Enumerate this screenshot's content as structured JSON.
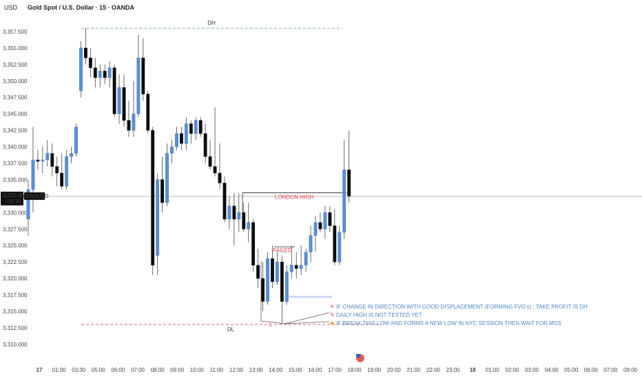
{
  "header": {
    "currency": "USD",
    "title": "Gold Spot / U.S. Dollar · 15 · OANDA"
  },
  "price_tag": {
    "price": "3,332.450",
    "countdown": "09:39",
    "symbol": "XAUUSD"
  },
  "labels": {
    "dh": "DH",
    "dl": "DL",
    "london_high": "LONDON HIGH",
    "failed": "FAILED",
    "l_marker": "L"
  },
  "notes": [
    {
      "icon": "pencil-icon",
      "text": "IF CHANGE IN DIRECTION WITH GOOD DISPLACEMENT (FORMING FVG's) ; TAKE PROFIT IS DH"
    },
    {
      "icon": "pencil-icon",
      "text": "DAILY HIGH IS NOT TESTED YET"
    },
    {
      "icon": "hand-pointing-icon",
      "text": "IF BREAK THIS LOW AND FORMS A NEW LOW IN NYC SESSION THEN WAIT FOR MSS"
    }
  ],
  "colors": {
    "up": "#5b8fd6",
    "down": "#0d0d0d",
    "dh_line": "#7fb77e",
    "dl_line": "#e06666",
    "annotation_red": "#e03a3a",
    "note_blue": "#4a86c8",
    "price_tag_bg": "#111111"
  },
  "chart_data": {
    "type": "candlestick",
    "timeframe": "15",
    "ylim": [
      3308,
      3360
    ],
    "y_ticks": [
      3357.5,
      3355,
      3352.5,
      3350,
      3347.5,
      3345,
      3342.5,
      3340,
      3337.5,
      3335,
      3332.5,
      3330,
      3327.5,
      3325,
      3322.5,
      3320,
      3317.5,
      3315,
      3312.5,
      3310
    ],
    "y_tick_labels": [
      "3,357.500",
      "3,355.000",
      "3,352.500",
      "3,350.000",
      "3,347.500",
      "3,345.000",
      "3,342.500",
      "3,340.000",
      "3,337.500",
      "3,335.000",
      "3,332.500",
      "3,330.000",
      "3,327.500",
      "3,325.000",
      "3,322.500",
      "3,320.000",
      "3,317.500",
      "3,315.000",
      "3,312.500",
      "3,310.000"
    ],
    "x_tick_labels": [
      "17",
      "01:00",
      "03:30",
      "05:00",
      "06:00",
      "07:00",
      "08:00",
      "09:00",
      "10:00",
      "11:00",
      "12:00",
      "13:00",
      "14:00",
      "15:00",
      "16:00",
      "17:00",
      "18:00",
      "19:00",
      "20:00",
      "21:00",
      "22:00",
      "23:00",
      "18",
      "01:00",
      "02:00",
      "03:00",
      "04:00",
      "05:00",
      "06:00",
      "07:00",
      "08:00"
    ],
    "candles": [
      {
        "o": 3329.0,
        "h": 3335.0,
        "l": 3326.5,
        "c": 3333.5
      },
      {
        "o": 3333.5,
        "h": 3343.0,
        "l": 3330.0,
        "c": 3338.0
      },
      {
        "o": 3338.0,
        "h": 3339.5,
        "l": 3336.5,
        "c": 3337.8
      },
      {
        "o": 3337.8,
        "h": 3340.0,
        "l": 3336.0,
        "c": 3338.0
      },
      {
        "o": 3338.0,
        "h": 3341.0,
        "l": 3337.0,
        "c": 3339.0
      },
      {
        "o": 3339.0,
        "h": 3340.5,
        "l": 3335.5,
        "c": 3337.0
      },
      {
        "o": 3337.0,
        "h": 3338.5,
        "l": 3334.0,
        "c": 3336.0
      },
      {
        "o": 3336.0,
        "h": 3339.0,
        "l": 3333.5,
        "c": 3334.0
      },
      {
        "o": 3334.0,
        "h": 3339.5,
        "l": 3333.5,
        "c": 3338.5
      },
      {
        "o": 3338.5,
        "h": 3340.0,
        "l": 3337.5,
        "c": 3339.0
      },
      {
        "o": 3339.0,
        "h": 3343.5,
        "l": 3338.5,
        "c": 3343.0
      },
      {
        "o": 3348.5,
        "h": 3356.0,
        "l": 3347.5,
        "c": 3355.0
      },
      {
        "o": 3355.0,
        "h": 3358.0,
        "l": 3352.5,
        "c": 3353.5
      },
      {
        "o": 3353.5,
        "h": 3355.0,
        "l": 3350.5,
        "c": 3352.0
      },
      {
        "o": 3352.0,
        "h": 3353.5,
        "l": 3349.0,
        "c": 3350.5
      },
      {
        "o": 3350.5,
        "h": 3352.5,
        "l": 3349.0,
        "c": 3351.5
      },
      {
        "o": 3351.5,
        "h": 3352.5,
        "l": 3349.5,
        "c": 3350.5
      },
      {
        "o": 3350.5,
        "h": 3353.0,
        "l": 3349.0,
        "c": 3352.0
      },
      {
        "o": 3352.0,
        "h": 3352.5,
        "l": 3344.5,
        "c": 3345.0
      },
      {
        "o": 3345.0,
        "h": 3351.0,
        "l": 3343.5,
        "c": 3349.0
      },
      {
        "o": 3349.0,
        "h": 3351.0,
        "l": 3343.0,
        "c": 3344.0
      },
      {
        "o": 3344.0,
        "h": 3347.0,
        "l": 3341.5,
        "c": 3342.5
      },
      {
        "o": 3342.5,
        "h": 3350.0,
        "l": 3341.5,
        "c": 3345.0
      },
      {
        "o": 3345.0,
        "h": 3357.0,
        "l": 3344.5,
        "c": 3353.5
      },
      {
        "o": 3353.5,
        "h": 3356.5,
        "l": 3347.0,
        "c": 3348.0
      },
      {
        "o": 3348.0,
        "h": 3348.5,
        "l": 3342.0,
        "c": 3342.5
      },
      {
        "o": 3342.5,
        "h": 3343.0,
        "l": 3320.5,
        "c": 3322.0
      },
      {
        "o": 3323.5,
        "h": 3336.0,
        "l": 3320.5,
        "c": 3335.0
      },
      {
        "o": 3335.0,
        "h": 3338.5,
        "l": 3330.0,
        "c": 3331.5
      },
      {
        "o": 3331.5,
        "h": 3340.5,
        "l": 3331.0,
        "c": 3339.0
      },
      {
        "o": 3339.0,
        "h": 3341.0,
        "l": 3337.5,
        "c": 3340.0
      },
      {
        "o": 3340.0,
        "h": 3343.0,
        "l": 3339.5,
        "c": 3342.0
      },
      {
        "o": 3342.0,
        "h": 3343.0,
        "l": 3339.5,
        "c": 3340.5
      },
      {
        "o": 3340.5,
        "h": 3344.5,
        "l": 3339.5,
        "c": 3343.5
      },
      {
        "o": 3343.5,
        "h": 3344.0,
        "l": 3340.5,
        "c": 3342.0
      },
      {
        "o": 3342.0,
        "h": 3344.5,
        "l": 3341.0,
        "c": 3344.0
      },
      {
        "o": 3344.0,
        "h": 3344.5,
        "l": 3341.5,
        "c": 3342.0
      },
      {
        "o": 3342.0,
        "h": 3343.5,
        "l": 3337.5,
        "c": 3338.5
      },
      {
        "o": 3338.5,
        "h": 3341.0,
        "l": 3336.5,
        "c": 3337.0
      },
      {
        "o": 3337.0,
        "h": 3346.0,
        "l": 3335.5,
        "c": 3336.0
      },
      {
        "o": 3336.0,
        "h": 3340.5,
        "l": 3333.5,
        "c": 3334.5
      },
      {
        "o": 3334.5,
        "h": 3335.5,
        "l": 3328.5,
        "c": 3329.0
      },
      {
        "o": 3329.0,
        "h": 3332.5,
        "l": 3327.5,
        "c": 3331.0
      },
      {
        "o": 3331.0,
        "h": 3333.0,
        "l": 3325.0,
        "c": 3329.0
      },
      {
        "o": 3329.0,
        "h": 3333.0,
        "l": 3327.0,
        "c": 3330.0
      },
      {
        "o": 3330.0,
        "h": 3331.5,
        "l": 3327.0,
        "c": 3327.5
      },
      {
        "o": 3327.5,
        "h": 3331.5,
        "l": 3325.5,
        "c": 3328.5
      },
      {
        "o": 3328.5,
        "h": 3329.0,
        "l": 3321.0,
        "c": 3322.0
      },
      {
        "o": 3322.0,
        "h": 3324.5,
        "l": 3318.5,
        "c": 3320.0
      },
      {
        "o": 3320.0,
        "h": 3322.5,
        "l": 3315.0,
        "c": 3316.5
      },
      {
        "o": 3316.5,
        "h": 3324.0,
        "l": 3316.0,
        "c": 3323.0
      },
      {
        "o": 3323.0,
        "h": 3325.0,
        "l": 3318.5,
        "c": 3319.5
      },
      {
        "o": 3319.5,
        "h": 3324.0,
        "l": 3319.0,
        "c": 3322.5
      },
      {
        "o": 3322.5,
        "h": 3323.5,
        "l": 3313.0,
        "c": 3316.5
      },
      {
        "o": 3316.5,
        "h": 3322.0,
        "l": 3316.0,
        "c": 3321.0
      },
      {
        "o": 3321.0,
        "h": 3325.0,
        "l": 3320.0,
        "c": 3322.0
      },
      {
        "o": 3322.0,
        "h": 3324.0,
        "l": 3320.0,
        "c": 3321.5
      },
      {
        "o": 3321.5,
        "h": 3325.0,
        "l": 3320.5,
        "c": 3322.0
      },
      {
        "o": 3322.0,
        "h": 3324.5,
        "l": 3321.0,
        "c": 3324.0
      },
      {
        "o": 3324.0,
        "h": 3328.0,
        "l": 3322.5,
        "c": 3326.5
      },
      {
        "o": 3326.5,
        "h": 3329.5,
        "l": 3324.0,
        "c": 3328.5
      },
      {
        "o": 3328.5,
        "h": 3330.0,
        "l": 3327.0,
        "c": 3327.5
      },
      {
        "o": 3327.5,
        "h": 3331.0,
        "l": 3326.0,
        "c": 3330.0
      },
      {
        "o": 3330.0,
        "h": 3331.0,
        "l": 3327.0,
        "c": 3328.0
      },
      {
        "o": 3328.0,
        "h": 3330.5,
        "l": 3322.0,
        "c": 3322.5
      },
      {
        "o": 3322.5,
        "h": 3328.0,
        "l": 3322.0,
        "c": 3327.0
      },
      {
        "o": 3327.0,
        "h": 3341.0,
        "l": 3326.0,
        "c": 3336.5
      },
      {
        "o": 3336.5,
        "h": 3342.5,
        "l": 3331.5,
        "c": 3332.5
      }
    ],
    "levels": {
      "dh": 3358.0,
      "dl": 3313.0,
      "london_high": 3333.0,
      "last_price": 3332.45,
      "failed": 3324.8,
      "zone_low": 3317.2
    }
  }
}
